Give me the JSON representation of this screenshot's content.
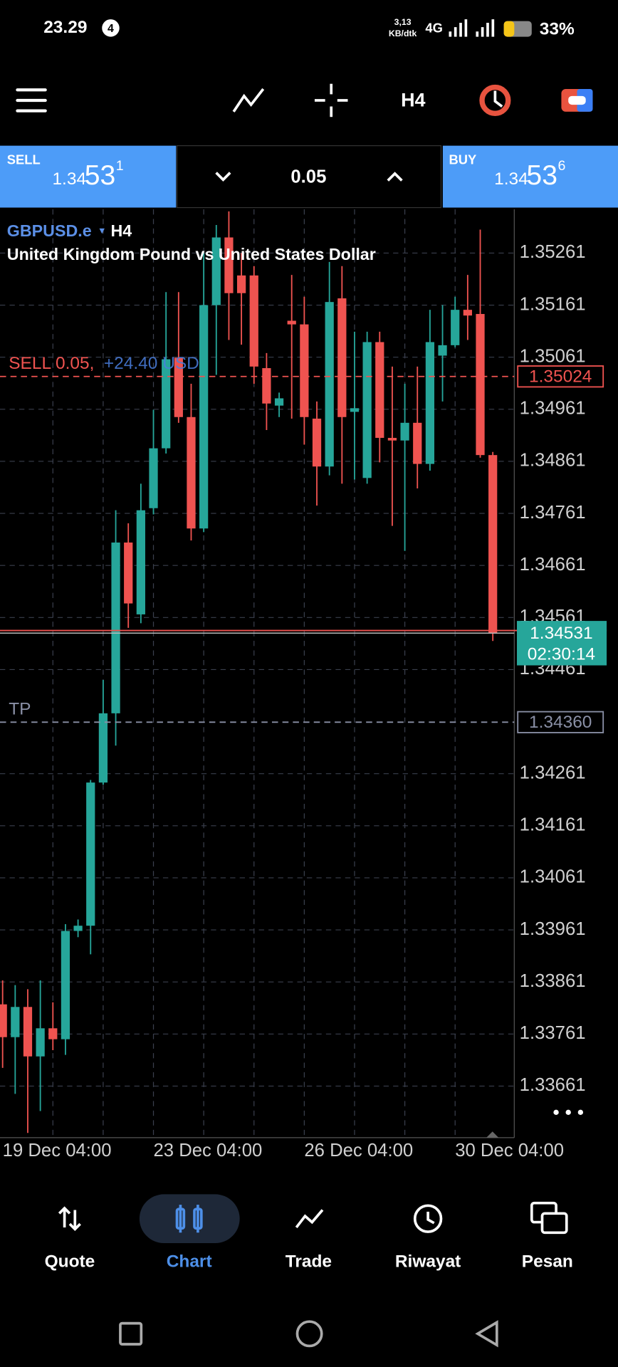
{
  "status_bar": {
    "time": "23.29",
    "notification_count": "4",
    "net_speed": "3,13",
    "net_unit": "KB/dtk",
    "network": "4G",
    "battery": "33%"
  },
  "toolbar": {
    "timeframe": "H4"
  },
  "trade_panel": {
    "sell": {
      "label": "SELL",
      "price_head": "1.34",
      "price_big": "53",
      "price_small": "1"
    },
    "volume": "0.05",
    "buy": {
      "label": "BUY",
      "price_head": "1.34",
      "price_big": "53",
      "price_small": "6"
    }
  },
  "chart_data": {
    "type": "candlestick",
    "symbol": "GBPUSD.e",
    "timeframe": "H4",
    "subtitle": "United Kingdom Pound vs United States Dollar",
    "categories": [
      "19 Dec 04:00",
      null,
      null,
      null,
      null,
      null,
      null,
      null,
      null,
      null,
      null,
      null,
      "23 Dec 04:00",
      null,
      null,
      null,
      null,
      null,
      null,
      null,
      null,
      null,
      null,
      null,
      "26 Dec 04:00",
      null,
      null,
      null,
      null,
      null,
      null,
      null,
      null,
      null,
      null,
      null,
      "30 Dec 04:00",
      null,
      null,
      null
    ],
    "open": [
      1.33818,
      1.33755,
      1.33813,
      1.33718,
      1.33772,
      1.33751,
      1.33959,
      1.33969,
      1.34244,
      1.34377,
      1.34705,
      1.34567,
      1.34771,
      1.34886,
      1.3506,
      1.34946,
      1.34732,
      1.35161,
      1.35291,
      1.35218,
      1.35218,
      1.3504,
      1.34968,
      1.35131,
      1.35124,
      1.34943,
      1.34851,
      1.35174,
      1.34956,
      1.34829,
      1.3509,
      1.34906,
      1.34901,
      1.34935,
      1.34856,
      1.35064,
      1.35084,
      1.35152,
      1.35144,
      1.34873
    ],
    "high": [
      1.33864,
      1.33855,
      1.33847,
      1.33864,
      1.33822,
      1.33972,
      1.33981,
      1.34249,
      1.34441,
      1.34767,
      1.34742,
      1.34818,
      1.3496,
      1.35186,
      1.35186,
      1.3501,
      1.35261,
      1.35315,
      1.35341,
      1.35261,
      1.35236,
      1.35069,
      1.34993,
      1.35219,
      1.35177,
      1.34976,
      1.35244,
      1.35236,
      1.3511,
      1.3511,
      1.3511,
      1.35043,
      1.3501,
      1.35043,
      1.35152,
      1.35161,
      1.35177,
      1.35219,
      1.35306,
      1.34879
    ],
    "low": [
      1.33696,
      1.33646,
      1.33571,
      1.33613,
      1.3373,
      1.33721,
      1.33947,
      1.33914,
      1.3424,
      1.34315,
      1.34541,
      1.3455,
      1.34759,
      1.34876,
      1.34935,
      1.34709,
      1.34725,
      1.35027,
      1.35094,
      1.35085,
      1.3501,
      1.34921,
      1.34946,
      1.34943,
      1.34893,
      1.34776,
      1.34834,
      1.34818,
      1.34826,
      1.34818,
      1.34859,
      1.34737,
      1.34689,
      1.34809,
      1.34843,
      1.34976,
      1.3508,
      1.35094,
      1.34868,
      1.34516
    ],
    "close": [
      1.33755,
      1.33813,
      1.33718,
      1.33772,
      1.33751,
      1.33959,
      1.33969,
      1.34244,
      1.34377,
      1.34705,
      1.34588,
      1.34767,
      1.34886,
      1.35057,
      1.34946,
      1.34732,
      1.35161,
      1.35291,
      1.35184,
      1.35184,
      1.35043,
      1.34972,
      1.34982,
      1.35124,
      1.34946,
      1.34851,
      1.35167,
      1.34946,
      1.34963,
      1.3509,
      1.34906,
      1.34901,
      1.34935,
      1.34856,
      1.3509,
      1.35084,
      1.35152,
      1.35141,
      1.34873,
      1.34531
    ],
    "up_color": "#26a69a",
    "down_color": "#ef5350",
    "ylim": [
      1.33562,
      1.35345
    ],
    "yticks": [
      1.35261,
      1.35161,
      1.35061,
      1.34961,
      1.34861,
      1.34761,
      1.34661,
      1.34561,
      1.34461,
      1.34261,
      1.34161,
      1.34061,
      1.33961,
      1.33861,
      1.33761,
      1.33661
    ],
    "grid": true,
    "levels": [
      {
        "text": "SELL 0.05,",
        "profit": "+24.40 USD",
        "price": {
          "value": 1.35024,
          "label": "1.35024"
        },
        "color": "#ef5350"
      },
      {
        "text": "TP",
        "price": {
          "value": 1.3436,
          "label": "1.34360"
        },
        "color": "#8a90a6"
      }
    ],
    "bid": {
      "price": 1.34531,
      "countdown": "02:30:14",
      "color": "#26a69a"
    },
    "ask": {
      "price": 1.34536,
      "color": "#ef5350"
    }
  },
  "nav": [
    "Quote",
    "Chart",
    "Trade",
    "Riwayat",
    "Pesan"
  ]
}
